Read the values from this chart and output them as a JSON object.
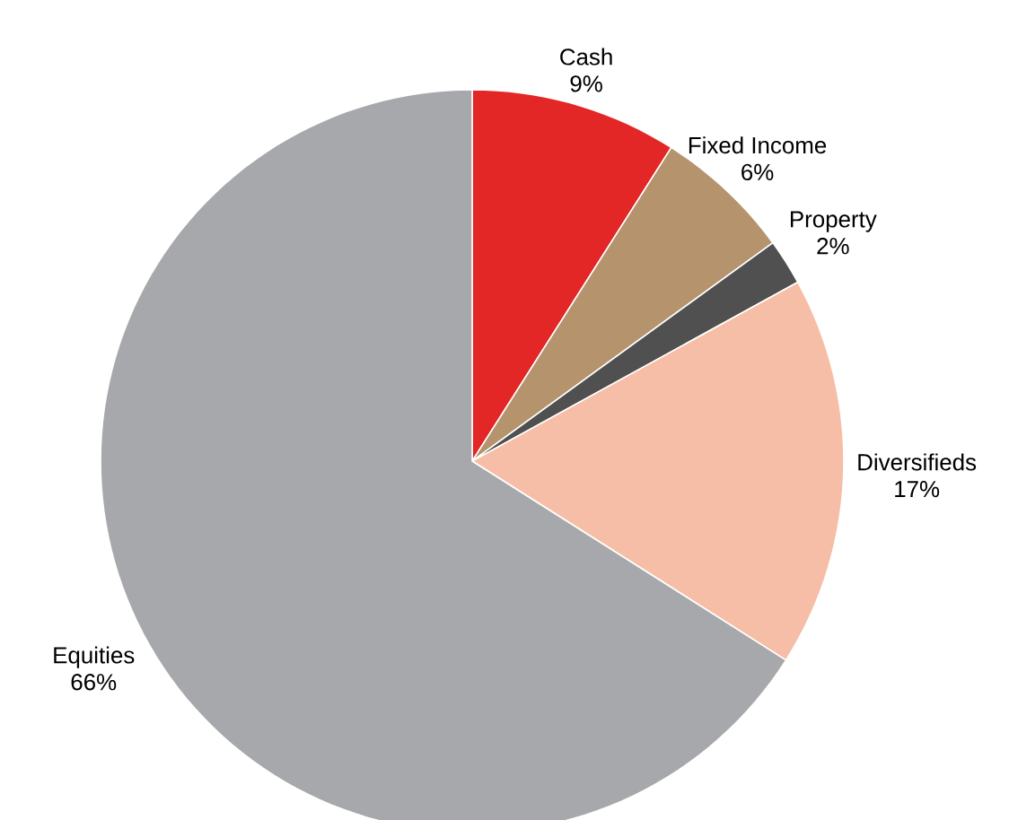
{
  "chart_data": {
    "type": "pie",
    "categories": [
      "Cash",
      "Fixed Income",
      "Property",
      "Diversifieds",
      "Equities"
    ],
    "values": [
      9,
      6,
      2,
      17,
      66
    ],
    "value_labels": [
      "9%",
      "6%",
      "2%",
      "17%",
      "66%"
    ],
    "colors": [
      "#e32726",
      "#b5936d",
      "#505050",
      "#f6bea6",
      "#a7a8ab"
    ]
  }
}
